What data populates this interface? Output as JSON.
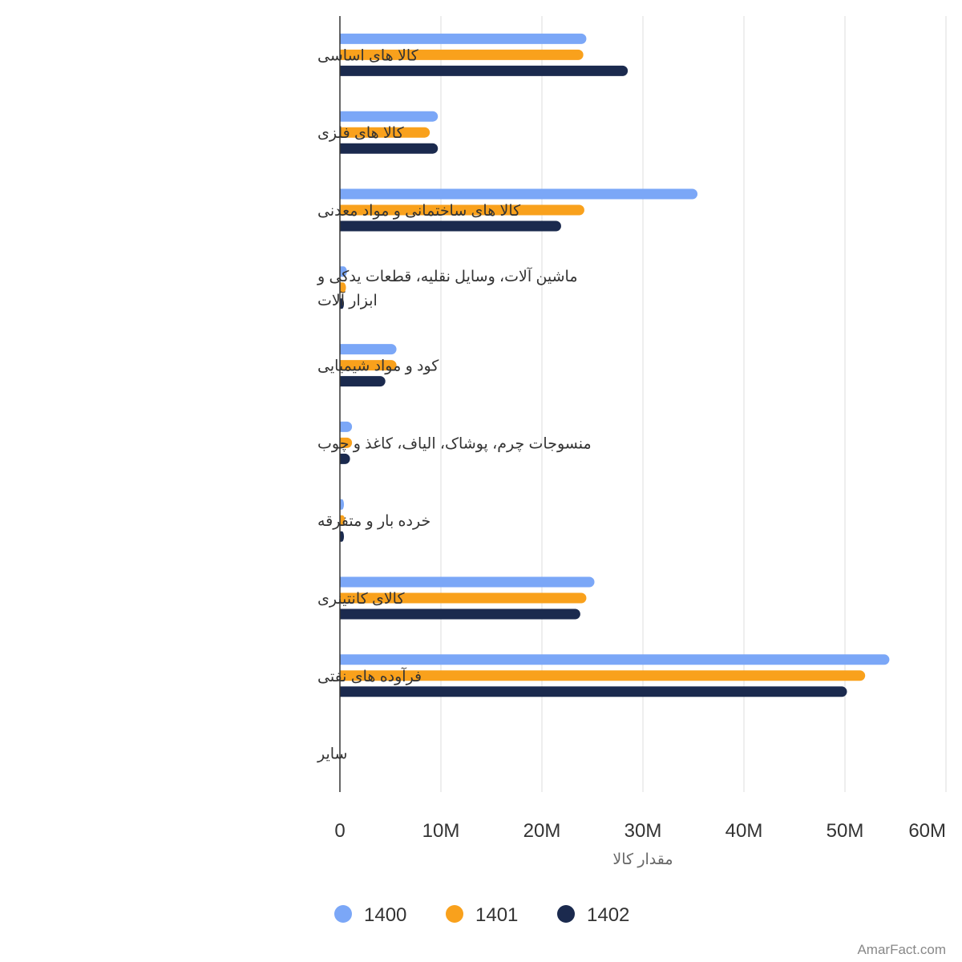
{
  "chart_data": {
    "type": "bar",
    "orientation": "horizontal",
    "title": "",
    "xlabel": "مقدار کالا",
    "ylabel": "",
    "xlim": [
      0,
      60000000
    ],
    "x_ticks": [
      0,
      10000000,
      20000000,
      30000000,
      40000000,
      50000000,
      60000000
    ],
    "x_tick_labels": [
      "0",
      "10M",
      "20M",
      "30M",
      "40M",
      "50M",
      "60M"
    ],
    "grid": true,
    "legend_position": "bottom",
    "categories": [
      "کالا های اساسی",
      "کالا های فلزی",
      "کالا های ساختمانی و مواد معدنی",
      "ماشین آلات، وسایل نقلیه، قطعات یدکی و ابزار آلات",
      "کود و مواد شیمیایی",
      "منسوجات چرم، پوشاک، الیاف، کاغذ و چوب",
      "خرده بار و متفرقه",
      "کالای کانتینری",
      "فرآوده های نفتی",
      "سایر"
    ],
    "series": [
      {
        "name": "1400",
        "color": "#7ba7f7",
        "values": [
          24400000,
          9700000,
          35400000,
          700000,
          5600000,
          1200000,
          400000,
          25200000,
          54400000,
          0
        ]
      },
      {
        "name": "1401",
        "color": "#f9a11c",
        "values": [
          24100000,
          8900000,
          24200000,
          600000,
          5600000,
          1200000,
          500000,
          24400000,
          52000000,
          0
        ]
      },
      {
        "name": "1402",
        "color": "#1b2a4e",
        "values": [
          28500000,
          9700000,
          21900000,
          400000,
          4500000,
          1000000,
          400000,
          23800000,
          50200000,
          0
        ]
      }
    ]
  },
  "watermark": "AmarFact.com"
}
